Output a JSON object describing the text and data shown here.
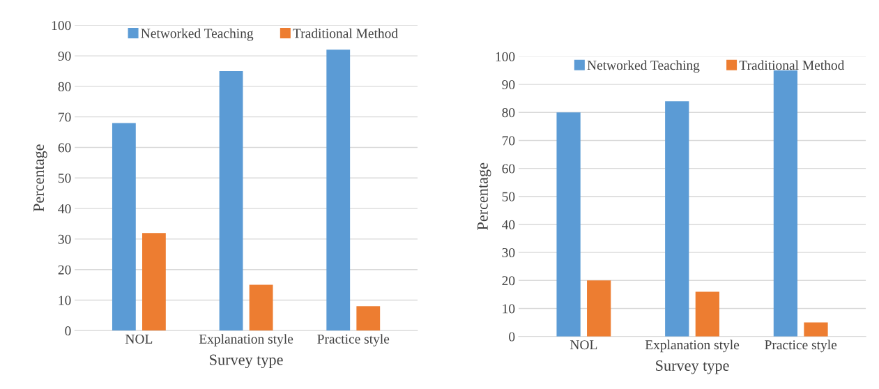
{
  "chart_data": [
    {
      "type": "bar",
      "categories": [
        "NOL",
        "Explanation style",
        "Practice style"
      ],
      "xlabel": "Survey type",
      "ylabel": "Percentage",
      "ylim": [
        0,
        100
      ],
      "yticks": [
        0,
        10,
        20,
        30,
        40,
        50,
        60,
        70,
        80,
        90,
        100
      ],
      "grid": "y",
      "legend": "top",
      "series": [
        {
          "name": "Networked Teaching",
          "color": "#5b9bd5",
          "values": [
            68,
            85,
            92
          ]
        },
        {
          "name": "Traditional Method",
          "color": "#ed7d31",
          "values": [
            32,
            15,
            8
          ]
        }
      ]
    },
    {
      "type": "bar",
      "categories": [
        "NOL",
        "Explanation style",
        "Practice style"
      ],
      "xlabel": "Survey type",
      "ylabel": "Percentage",
      "ylim": [
        0,
        100
      ],
      "yticks": [
        0,
        10,
        20,
        30,
        40,
        50,
        60,
        70,
        80,
        90,
        100
      ],
      "grid": "y",
      "legend": "top",
      "series": [
        {
          "name": "Networked Teaching",
          "color": "#5b9bd5",
          "values": [
            80,
            84,
            95
          ]
        },
        {
          "name": "Traditional Method",
          "color": "#ed7d31",
          "values": [
            20,
            16,
            5
          ]
        }
      ]
    }
  ]
}
